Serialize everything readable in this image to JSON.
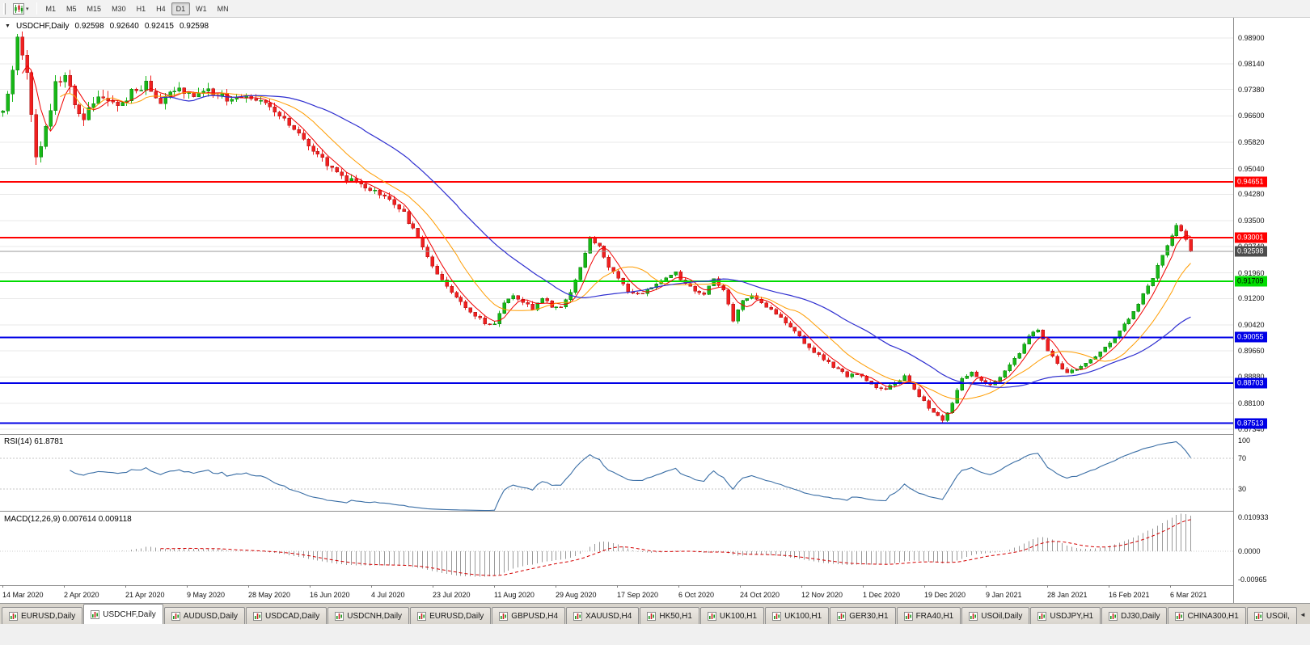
{
  "toolbar": {
    "caret_glyph": "▾",
    "timeframes": [
      {
        "label": "M1",
        "selected": false
      },
      {
        "label": "M5",
        "selected": false
      },
      {
        "label": "M15",
        "selected": false
      },
      {
        "label": "M30",
        "selected": false
      },
      {
        "label": "H1",
        "selected": false
      },
      {
        "label": "H4",
        "selected": false
      },
      {
        "label": "D1",
        "selected": true
      },
      {
        "label": "W1",
        "selected": false
      },
      {
        "label": "MN",
        "selected": false
      }
    ]
  },
  "chart": {
    "symbol_label": "USDCHF,Daily",
    "collapse_glyph": "▼"
  },
  "indicators": {
    "rsi": {
      "name": "RSI(14)",
      "value": "61.8781",
      "levels": [
        {
          "label": "100",
          "value": 100
        },
        {
          "label": "70",
          "value": 70
        },
        {
          "label": "30",
          "value": 30
        }
      ]
    },
    "macd": {
      "name": "MACD(12,26,9)",
      "value1": "0.007614",
      "value2": "0.009118",
      "axis": [
        {
          "label": "0.010933",
          "value": 0.010933
        },
        {
          "label": "0.0000",
          "value": 0
        },
        {
          "label": "-0.00965",
          "value": -0.00965
        }
      ]
    }
  },
  "tabbar": {
    "scroll_left_glyph": "◄"
  },
  "tabs": [
    {
      "label": "EURUSD,Daily",
      "selected": false
    },
    {
      "label": "USDCHF,Daily",
      "selected": true
    },
    {
      "label": "AUDUSD,Daily",
      "selected": false
    },
    {
      "label": "USDCAD,Daily",
      "selected": false
    },
    {
      "label": "USDCNH,Daily",
      "selected": false
    },
    {
      "label": "EURUSD,Daily",
      "selected": false
    },
    {
      "label": "GBPUSD,H4",
      "selected": false
    },
    {
      "label": "XAUUSD,H4",
      "selected": false
    },
    {
      "label": "HK50,H1",
      "selected": false
    },
    {
      "label": "UK100,H1",
      "selected": false
    },
    {
      "label": "UK100,H1",
      "selected": false
    },
    {
      "label": "GER30,H1",
      "selected": false
    },
    {
      "label": "FRA40,H1",
      "selected": false
    },
    {
      "label": "USOil,Daily",
      "selected": false
    },
    {
      "label": "USDJPY,H1",
      "selected": false
    },
    {
      "label": "DJ30,Daily",
      "selected": false
    },
    {
      "label": "CHINA300,H1",
      "selected": false
    },
    {
      "label": "USOil,",
      "selected": false
    }
  ],
  "colors": {
    "up": "#17b817",
    "up_border": "#0b7a0b",
    "down": "#f02020",
    "down_border": "#a81414",
    "rsi": "#3a6ea5",
    "macd_hist": "#9a9a9a",
    "macd_signal": "#d40000",
    "grid": "#e9e9e9"
  },
  "chart_data": {
    "type": "candlestick",
    "symbol": "USDCHF",
    "timeframe": "Daily",
    "ohlc_display": {
      "open": "0.92598",
      "high": "0.92640",
      "low": "0.92415",
      "close": "0.92598"
    },
    "bars_total": 250,
    "y_axis": {
      "min": 0.8717,
      "max": 0.995,
      "tick_labels": [
        "0.98900",
        "0.98140",
        "0.97380",
        "0.96600",
        "0.95820",
        "0.95040",
        "0.94280",
        "0.93500",
        "0.92740",
        "0.91960",
        "0.91200",
        "0.90420",
        "0.89660",
        "0.88880",
        "0.88100",
        "0.87340"
      ]
    },
    "x_labels": [
      "14 Mar 2020",
      "2 Apr 2020",
      "21 Apr 2020",
      "9 May 2020",
      "28 May 2020",
      "16 Jun 2020",
      "4 Jul 2020",
      "23 Jul 2020",
      "11 Aug 2020",
      "29 Aug 2020",
      "17 Sep 2020",
      "6 Oct 2020",
      "24 Oct 2020",
      "12 Nov 2020",
      "1 Dec 2020",
      "19 Dec 2020",
      "9 Jan 2021",
      "28 Jan 2021",
      "16 Feb 2021",
      "6 Mar 2021"
    ],
    "price_keypoints": {
      "bar_index": [
        0,
        1,
        3,
        5,
        7,
        9,
        11,
        13,
        15,
        17,
        19,
        21,
        24,
        27,
        30,
        33,
        36,
        39,
        42,
        45,
        48,
        51,
        54,
        57,
        60,
        63,
        66,
        69,
        72,
        75,
        78,
        81,
        84,
        87,
        90,
        93,
        96,
        99,
        101,
        103,
        105,
        107,
        109,
        111,
        113,
        115,
        117,
        119,
        121,
        123,
        125,
        127,
        129,
        131,
        133,
        135,
        137,
        139,
        141,
        143,
        145,
        147,
        149,
        151,
        153,
        155,
        157,
        159,
        161,
        163,
        165,
        167,
        169,
        171,
        173,
        175,
        177,
        179,
        181,
        183,
        185,
        187,
        189,
        191,
        193,
        195,
        197,
        199,
        201,
        203,
        205,
        207,
        209,
        211,
        213,
        215,
        217,
        219,
        221,
        223,
        225,
        227,
        229,
        231,
        233,
        235,
        237,
        239,
        241,
        243,
        245,
        246,
        247,
        248,
        249
      ],
      "price": [
        0.966,
        0.972,
        0.9885,
        0.98,
        0.953,
        0.962,
        0.975,
        0.977,
        0.97,
        0.966,
        0.97,
        0.972,
        0.9685,
        0.973,
        0.9755,
        0.9705,
        0.974,
        0.972,
        0.9735,
        0.9725,
        0.9705,
        0.972,
        0.97,
        0.9675,
        0.964,
        0.9595,
        0.9545,
        0.95,
        0.9475,
        0.946,
        0.944,
        0.942,
        0.937,
        0.93,
        0.922,
        0.915,
        0.911,
        0.907,
        0.905,
        0.9045,
        0.911,
        0.913,
        0.9105,
        0.909,
        0.912,
        0.91,
        0.909,
        0.914,
        0.921,
        0.9295,
        0.928,
        0.9215,
        0.9175,
        0.9145,
        0.913,
        0.9145,
        0.9165,
        0.9185,
        0.9195,
        0.9165,
        0.914,
        0.9135,
        0.9175,
        0.9145,
        0.9055,
        0.9115,
        0.913,
        0.9105,
        0.9085,
        0.9065,
        0.9035,
        0.9005,
        0.8975,
        0.895,
        0.893,
        0.891,
        0.889,
        0.89,
        0.8878,
        0.8858,
        0.885,
        0.8872,
        0.8888,
        0.8848,
        0.8815,
        0.8785,
        0.8757,
        0.8815,
        0.8885,
        0.89,
        0.8878,
        0.8862,
        0.889,
        0.8922,
        0.8962,
        0.9012,
        0.9028,
        0.8968,
        0.8928,
        0.89,
        0.8912,
        0.8932,
        0.8952,
        0.8972,
        0.9002,
        0.9042,
        0.9082,
        0.9132,
        0.9182,
        0.9252,
        0.9302,
        0.9338,
        0.9318,
        0.9292,
        0.92598
      ]
    },
    "moving_averages": [
      {
        "period": 5,
        "color": "#f00000",
        "width": 1
      },
      {
        "period": 13,
        "color": "#ff9c00",
        "width": 1
      },
      {
        "period": 34,
        "color": "#2f2fd0",
        "width": 1.2
      }
    ],
    "horizontal_levels": [
      {
        "label": "0.94651",
        "value": 0.94651,
        "color": "#ff0000",
        "text": "#ffffff",
        "width": 2
      },
      {
        "label": "0.93001",
        "value": 0.93001,
        "color": "#ff0000",
        "text": "#ffffff",
        "width": 2
      },
      {
        "label": "0.91709",
        "value": 0.91709,
        "color": "#00dc00",
        "text": "#000000",
        "width": 2
      },
      {
        "label": "0.90055",
        "value": 0.90055,
        "color": "#0000e6",
        "text": "#ffffff",
        "width": 2
      },
      {
        "label": "0.88703",
        "value": 0.88703,
        "color": "#0000e6",
        "text": "#ffffff",
        "width": 2
      },
      {
        "label": "0.87513",
        "value": 0.87513,
        "color": "#0000e6",
        "text": "#ffffff",
        "width": 2
      }
    ],
    "current_price": {
      "label": "0.92598",
      "value": 0.92598,
      "line_color": "#9a9a9a",
      "box_color": "#4d4d4d"
    },
    "rsi": {
      "period": 14,
      "last": 61.8781,
      "levels": [
        30,
        70
      ]
    },
    "macd": {
      "fast": 12,
      "slow": 26,
      "signal": 9,
      "hist_last": 0.007614,
      "signal_last": 0.009118,
      "scale_max": 0.010933,
      "scale_min": -0.00965
    }
  }
}
